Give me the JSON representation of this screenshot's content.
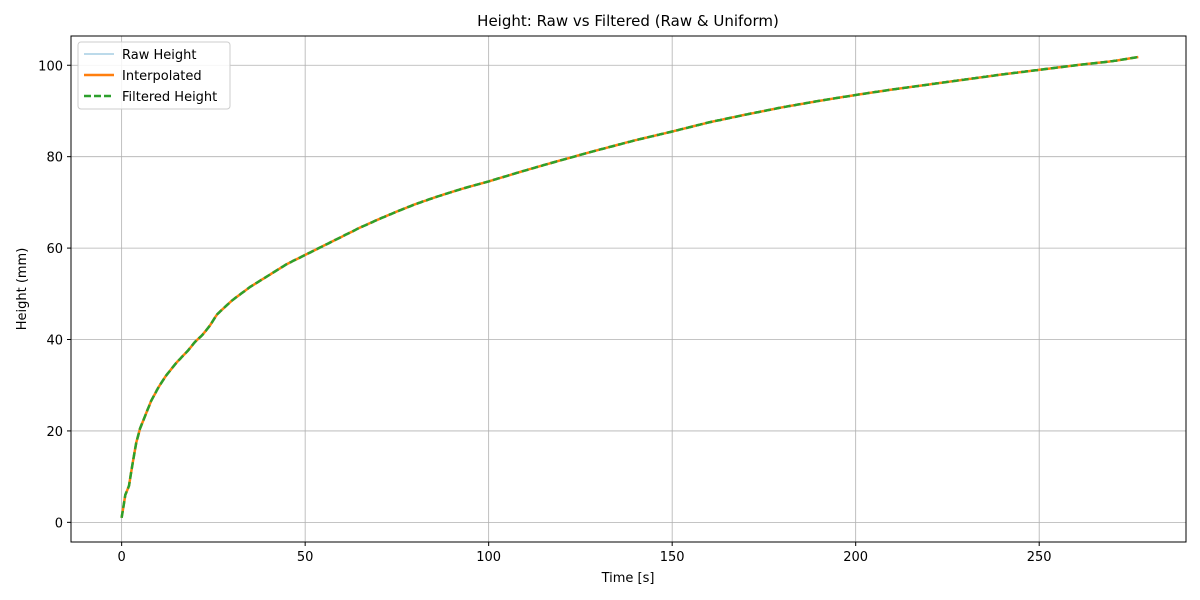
{
  "chart_data": {
    "type": "line",
    "title": "Height: Raw vs Filtered (Raw & Uniform)",
    "xlabel": "Time [s]",
    "ylabel": "Height (mm)",
    "xlim": [
      -13.8,
      290
    ],
    "ylim": [
      -4.3,
      106.4
    ],
    "xticks": [
      0,
      50,
      100,
      150,
      200,
      250
    ],
    "yticks": [
      0,
      20,
      40,
      60,
      80,
      100
    ],
    "grid": true,
    "legend_position": "upper-left",
    "series": [
      {
        "name": "Raw Height",
        "color": "#a6cee3",
        "style": "solid"
      },
      {
        "name": "Interpolated",
        "color": "#ff7f0e",
        "style": "solid"
      },
      {
        "name": "Filtered Height",
        "color": "#2ca02c",
        "style": "dashed"
      }
    ],
    "curve": {
      "x": [
        0,
        1,
        2,
        3,
        4,
        5,
        6,
        8,
        10,
        12,
        15,
        18,
        20,
        22,
        24,
        26,
        28,
        30,
        35,
        40,
        45,
        50,
        55,
        60,
        65,
        70,
        75,
        80,
        85,
        90,
        95,
        100,
        110,
        120,
        130,
        140,
        150,
        160,
        170,
        180,
        190,
        200,
        210,
        220,
        230,
        240,
        250,
        260,
        270,
        277
      ],
      "y": [
        1,
        6,
        8,
        13,
        17.5,
        20.5,
        22.5,
        26.5,
        29.5,
        32,
        35,
        37.5,
        39.5,
        41,
        43,
        45.5,
        47,
        48.5,
        51.5,
        54,
        56.5,
        58.5,
        60.5,
        62.5,
        64.5,
        66.3,
        68,
        69.6,
        71,
        72.3,
        73.5,
        74.6,
        77,
        79.3,
        81.5,
        83.6,
        85.5,
        87.5,
        89.2,
        90.8,
        92.2,
        93.5,
        94.7,
        95.8,
        96.9,
        98,
        99,
        100,
        100.9,
        101.8
      ]
    }
  }
}
